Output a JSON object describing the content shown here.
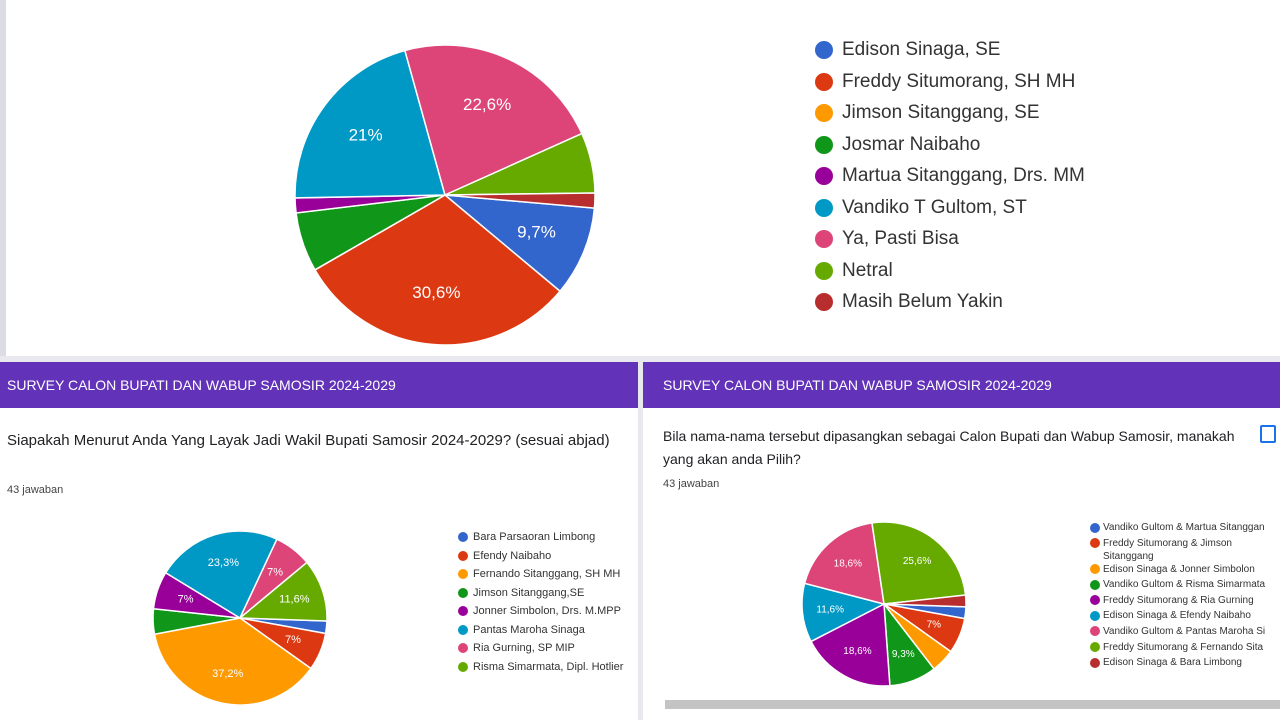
{
  "chart_data": [
    {
      "type": "pie",
      "categories": [
        "Edison Sinaga, SE",
        "Freddy Situmorang, SH MH",
        "Jimson Sitanggang, SE",
        "Josmar Naibaho",
        "Martua Sitanggang, Drs. MM",
        "Vandiko T Gultom, ST",
        "Ya, Pasti Bisa",
        "Netral",
        "Masih Belum Yakin"
      ],
      "values": [
        9.7,
        30.6,
        0,
        6.4,
        1.6,
        21,
        22.6,
        6.5,
        1.6
      ],
      "value_labels": [
        "9,7%",
        "30,6%",
        null,
        null,
        null,
        "21%",
        "22,6%",
        null,
        null
      ],
      "colors": [
        "#3366cc",
        "#dc3912",
        "#ff9900",
        "#109618",
        "#990099",
        "#0099c6",
        "#dd4477",
        "#66aa00",
        "#b82e2e"
      ]
    },
    {
      "type": "pie",
      "header": "SURVEY CALON BUPATI DAN WABUP SAMOSIR 2024-2029",
      "title": "Siapakah Menurut Anda Yang Layak Jadi Wakil Bupati Samosir 2024-2029? (sesuai abjad)",
      "subtitle": "43 jawaban",
      "categories": [
        "Bara Parsaoran Limbong",
        "Efendy Naibaho",
        "Fernando Sitanggang, SH MH",
        "Jimson Sitanggang,SE",
        "Jonner Simbolon, Drs. M.MPP",
        "Pantas Maroha Sinaga",
        "Ria Gurning, SP MIP",
        "Risma Simarmata, Dipl. Hotlier"
      ],
      "values": [
        2.3,
        7,
        37.2,
        4.7,
        7,
        23.3,
        7,
        11.6
      ],
      "value_labels": [
        null,
        "7%",
        "37,2%",
        null,
        "7%",
        "23,3%",
        "7%",
        "11,6%"
      ],
      "colors": [
        "#3366cc",
        "#dc3912",
        "#ff9900",
        "#109618",
        "#990099",
        "#0099c6",
        "#dd4477",
        "#66aa00"
      ]
    },
    {
      "type": "pie",
      "header": "SURVEY CALON BUPATI DAN WABUP SAMOSIR 2024-2029",
      "title": "Bila nama-nama tersebut dipasangkan sebagai Calon Bupati dan Wabup Samosir, manakah yang akan anda Pilih?",
      "subtitle": "43 jawaban",
      "categories": [
        "Vandiko Gultom & Martua Sitanggan",
        "Freddy Situmorang & Jimson Sitanggang",
        "Edison Sinaga & Jonner Simbolon",
        "Vandiko Gultom & Risma Simarmata",
        "Freddy Situmorang & Ria Gurning",
        "Edison Sinaga & Efendy Naibaho",
        "Vandiko Gultom & Pantas Maroha Si",
        "Freddy Situmorang & Fernando Sita",
        "Edison Sinaga & Bara Limbong"
      ],
      "values": [
        2.3,
        7,
        4.7,
        9.3,
        18.6,
        11.6,
        18.6,
        25.6,
        2.3
      ],
      "value_labels": [
        null,
        "7%",
        null,
        "9,3%",
        "18,6%",
        "11,6%",
        "18,6%",
        "25,6%",
        null
      ],
      "colors": [
        "#3366cc",
        "#dc3912",
        "#ff9900",
        "#109618",
        "#990099",
        "#0099c6",
        "#dd4477",
        "#66aa00",
        "#b82e2e"
      ]
    }
  ]
}
